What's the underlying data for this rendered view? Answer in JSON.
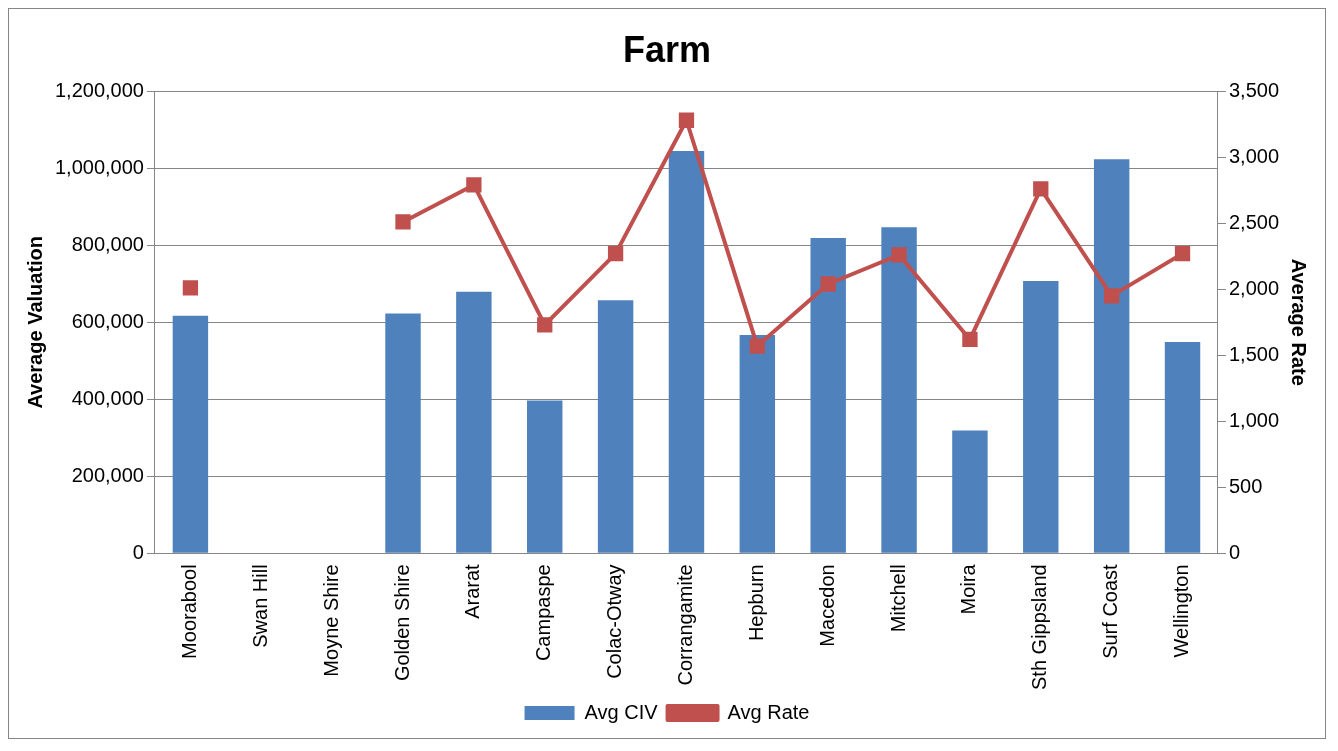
{
  "chart_data": {
    "type": "bar",
    "title": "Farm",
    "ylabel": "Average Valuation",
    "y2label": "Average Rate",
    "categories": [
      "Moorabool",
      "Swan Hill",
      "Moyne Shire",
      "Golden Shire",
      "Ararat",
      "Campaspe",
      "Colac-Otway",
      "Corrangamite",
      "Hepburn",
      "Macedon",
      "Mitchell",
      "Moira",
      "Sth Gippsland",
      "Surf Coast",
      "Wellington"
    ],
    "series": [
      {
        "name": "Avg CIV",
        "color": "#4f81bd",
        "values": [
          617000,
          null,
          null,
          623000,
          679000,
          397000,
          657000,
          1045000,
          567000,
          819000,
          847000,
          319000,
          707000,
          1023000,
          549000
        ]
      },
      {
        "name": "Avg Rate",
        "type": "line",
        "axis": "y2",
        "color": "#c0504d",
        "marker": "square",
        "values": [
          2010,
          null,
          null,
          2510,
          2790,
          1730,
          2270,
          3280,
          1570,
          2040,
          2260,
          1620,
          2760,
          1950,
          2270
        ]
      }
    ],
    "ylim": [
      0,
      1200000
    ],
    "yticks": [
      0,
      {
        "value": 200000,
        "label": "200,000"
      },
      {
        "value": 400000,
        "label": "400,000"
      },
      {
        "value": 600000,
        "label": "600,000"
      },
      {
        "value": 800000,
        "label": "800,000"
      },
      {
        "value": 1000000,
        "label": "1,000,000"
      },
      {
        "value": 1200000,
        "label": "1,200,000"
      }
    ],
    "y2lim": [
      0,
      3500
    ],
    "y2ticks": [
      0,
      500,
      {
        "value": 1000,
        "label": "1,000"
      },
      {
        "value": 1500,
        "label": "1,500"
      },
      {
        "value": 2000,
        "label": "2,000"
      },
      {
        "value": 2500,
        "label": "2,500"
      },
      {
        "value": 3000,
        "label": "3,000"
      },
      {
        "value": 3500,
        "label": "3,500"
      }
    ],
    "grid": "y",
    "legend": "bottom"
  }
}
